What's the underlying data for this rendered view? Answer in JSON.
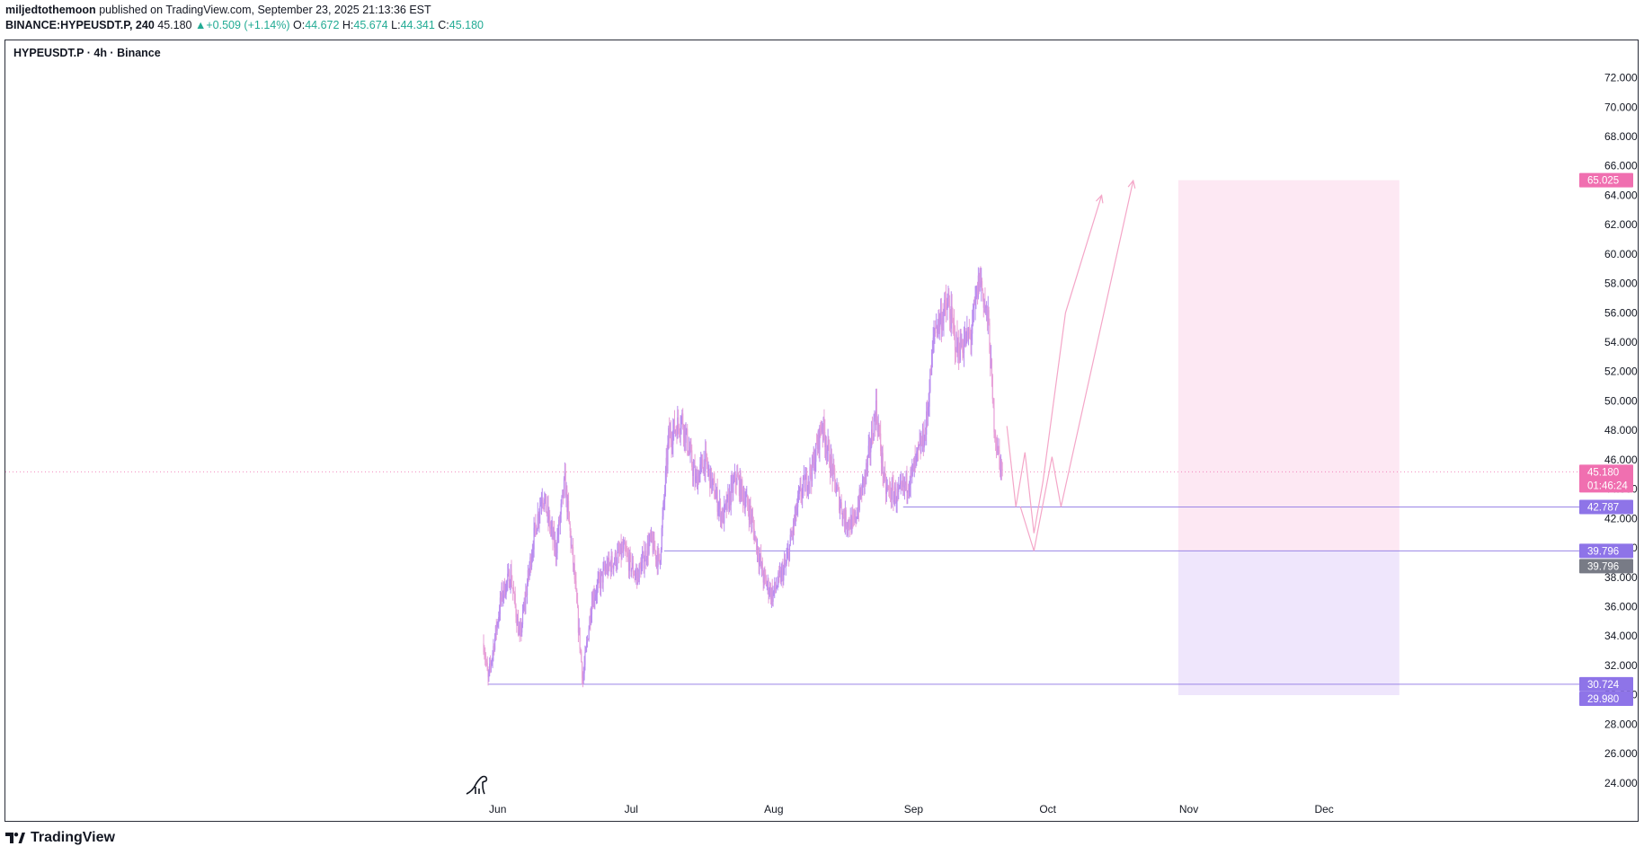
{
  "header": {
    "author": "miljedtothemoon",
    "published": "published on TradingView.com, September 23, 2025 21:13:36 EST",
    "symbol": "BINANCE:HYPEUSDT.P, 240",
    "price": "45.180",
    "change_arrow": "▲",
    "change": "+0.509 (+1.14%)",
    "o_label": "O:",
    "o_value": "44.672",
    "h_label": "H:",
    "h_value": "45.674",
    "l_label": "L:",
    "l_value": "44.341",
    "c_label": "C:",
    "c_value": "45.180"
  },
  "chart_title": "HYPEUSDT.P · 4h · Binance",
  "footer": {
    "brand": "TradingView",
    "logo_icon": "tradingview-logo-icon",
    "watermark_icon": "dinosaur-icon"
  },
  "colors": {
    "candle": "#b98cf0",
    "candle_alt": "#e8a0d8",
    "target_zone": "#fde8f3",
    "stop_zone": "#efe6fc",
    "level_line": "#9a85e6",
    "projection": "#f4a6c8",
    "price_badge": "#f06fb0",
    "level_badge": "#8e74e8",
    "gray_badge": "#787b86"
  },
  "chart_data": {
    "type": "candlestick",
    "y_axis": {
      "ticks": [
        "72.000",
        "70.000",
        "68.000",
        "66.000",
        "64.000",
        "62.000",
        "60.000",
        "58.000",
        "56.000",
        "54.000",
        "52.000",
        "50.000",
        "48.000",
        "46.000",
        "44.000",
        "42.000",
        "40.000",
        "38.000",
        "36.000",
        "34.000",
        "32.000",
        "30.000",
        "28.000",
        "26.000",
        "24.000"
      ],
      "range": [
        23.5,
        73.5
      ]
    },
    "x_axis": {
      "ticks": [
        "Jun",
        "Jul",
        "Aug",
        "Sep",
        "Oct",
        "Nov",
        "Dec"
      ],
      "range": [
        "2025-05-29",
        "2025-12-31"
      ]
    },
    "price_path": [
      {
        "date": "2025-05-31",
        "price": 33.5
      },
      {
        "date": "2025-06-01",
        "price": 31.0
      },
      {
        "date": "2025-06-04",
        "price": 36.8
      },
      {
        "date": "2025-06-06",
        "price": 38.2
      },
      {
        "date": "2025-06-08",
        "price": 33.8
      },
      {
        "date": "2025-06-11",
        "price": 40.5
      },
      {
        "date": "2025-06-13",
        "price": 43.8
      },
      {
        "date": "2025-06-16",
        "price": 39.8
      },
      {
        "date": "2025-06-18",
        "price": 44.5
      },
      {
        "date": "2025-06-20",
        "price": 38.5
      },
      {
        "date": "2025-06-22",
        "price": 31.0
      },
      {
        "date": "2025-06-24",
        "price": 36.5
      },
      {
        "date": "2025-06-27",
        "price": 38.5
      },
      {
        "date": "2025-07-01",
        "price": 39.8
      },
      {
        "date": "2025-07-04",
        "price": 38.0
      },
      {
        "date": "2025-07-07",
        "price": 40.5
      },
      {
        "date": "2025-07-09",
        "price": 39.0
      },
      {
        "date": "2025-07-11",
        "price": 47.5
      },
      {
        "date": "2025-07-14",
        "price": 48.8
      },
      {
        "date": "2025-07-17",
        "price": 44.5
      },
      {
        "date": "2025-07-19",
        "price": 46.0
      },
      {
        "date": "2025-07-23",
        "price": 42.0
      },
      {
        "date": "2025-07-26",
        "price": 44.8
      },
      {
        "date": "2025-07-29",
        "price": 42.5
      },
      {
        "date": "2025-08-01",
        "price": 38.0
      },
      {
        "date": "2025-08-03",
        "price": 36.8
      },
      {
        "date": "2025-08-06",
        "price": 38.8
      },
      {
        "date": "2025-08-09",
        "price": 43.5
      },
      {
        "date": "2025-08-12",
        "price": 45.5
      },
      {
        "date": "2025-08-14",
        "price": 48.5
      },
      {
        "date": "2025-08-17",
        "price": 44.2
      },
      {
        "date": "2025-08-19",
        "price": 42.0
      },
      {
        "date": "2025-08-21",
        "price": 41.5
      },
      {
        "date": "2025-08-24",
        "price": 45.5
      },
      {
        "date": "2025-08-26",
        "price": 49.5
      },
      {
        "date": "2025-08-28",
        "price": 44.0
      },
      {
        "date": "2025-08-31",
        "price": 43.5
      },
      {
        "date": "2025-09-03",
        "price": 45.0
      },
      {
        "date": "2025-09-06",
        "price": 48.0
      },
      {
        "date": "2025-09-08",
        "price": 55.0
      },
      {
        "date": "2025-09-11",
        "price": 56.5
      },
      {
        "date": "2025-09-13",
        "price": 53.5
      },
      {
        "date": "2025-09-16",
        "price": 54.5
      },
      {
        "date": "2025-09-18",
        "price": 58.5
      },
      {
        "date": "2025-09-20",
        "price": 55.0
      },
      {
        "date": "2025-09-21",
        "price": 49.0
      },
      {
        "date": "2025-09-22",
        "price": 46.5
      },
      {
        "date": "2025-09-23",
        "price": 45.18
      }
    ],
    "highs_lows": {
      "high": 59.3,
      "low": 30.72
    },
    "last_price": 45.18,
    "levels": [
      {
        "name": "support-upper",
        "price": 42.787,
        "label": "42.787",
        "from_date": "2025-09-01"
      },
      {
        "name": "support-mid",
        "price": 39.796,
        "label": "39.796",
        "from_date": "2025-07-10"
      },
      {
        "name": "support-low",
        "price": 30.724,
        "label": "30.724",
        "from_date": "2025-06-01"
      }
    ],
    "position_box": {
      "start": "2025-11-01",
      "end": "2025-12-20",
      "target": 65.025,
      "entry": 39.796,
      "stop": 29.98,
      "target_label": "65.025",
      "stop_label": "29.980"
    },
    "badges": {
      "price": "45.180",
      "countdown": "01:46:24",
      "entry_dark": "39.796"
    },
    "projection_paths": [
      [
        {
          "date": "2025-09-24",
          "price": 48.3
        },
        {
          "date": "2025-09-26",
          "price": 42.8
        },
        {
          "date": "2025-09-28",
          "price": 46.5
        },
        {
          "date": "2025-09-30",
          "price": 41.0
        },
        {
          "date": "2025-10-02",
          "price": 44.5
        },
        {
          "date": "2025-10-07",
          "price": 56.0
        },
        {
          "date": "2025-10-15",
          "price": 64.0
        }
      ],
      [
        {
          "date": "2025-09-27",
          "price": 42.8
        },
        {
          "date": "2025-09-30",
          "price": 39.8
        },
        {
          "date": "2025-10-04",
          "price": 46.2
        },
        {
          "date": "2025-10-06",
          "price": 42.8
        },
        {
          "date": "2025-10-22",
          "price": 65.0
        }
      ]
    ]
  }
}
